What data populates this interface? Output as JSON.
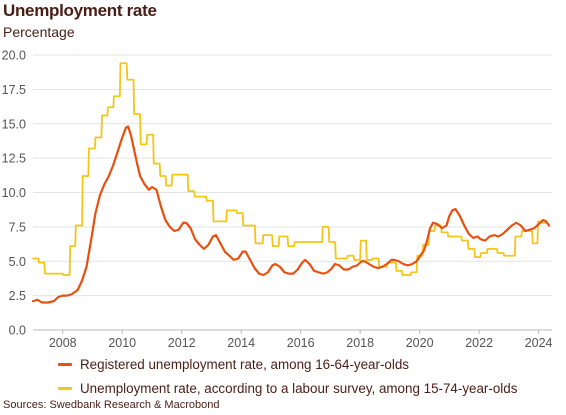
{
  "chart_data": {
    "type": "line",
    "title": "Unemployment rate",
    "subtitle": "Percentage",
    "xlim": [
      2007.0,
      2024.45
    ],
    "ylim": [
      0,
      20
    ],
    "x_ticks": [
      2008,
      2010,
      2012,
      2014,
      2016,
      2018,
      2020,
      2022,
      2024
    ],
    "x_tick_labels": [
      "2008",
      "2010",
      "2012",
      "2014",
      "2016",
      "2018",
      "2020",
      "2022",
      "2024"
    ],
    "y_ticks": [
      0,
      2.5,
      5,
      7.5,
      10,
      12.5,
      15,
      17.5,
      20
    ],
    "y_tick_labels": [
      "0.0",
      "2.5",
      "5.0",
      "7.5",
      "10.0",
      "12.5",
      "15.0",
      "17.5",
      "20.0"
    ],
    "grid": "horizontal",
    "legend_position": "bottom",
    "series": [
      {
        "name": "Registered unemployment rate, among 16-64-year-olds",
        "color": "#e8500e",
        "points": [
          [
            2007.0,
            2.1
          ],
          [
            2007.15,
            2.2
          ],
          [
            2007.3,
            2.0
          ],
          [
            2007.5,
            2.0
          ],
          [
            2007.7,
            2.1
          ],
          [
            2007.85,
            2.4
          ],
          [
            2008.0,
            2.5
          ],
          [
            2008.15,
            2.5
          ],
          [
            2008.3,
            2.6
          ],
          [
            2008.5,
            2.9
          ],
          [
            2008.65,
            3.6
          ],
          [
            2008.8,
            4.6
          ],
          [
            2008.95,
            6.5
          ],
          [
            2009.1,
            8.5
          ],
          [
            2009.25,
            9.8
          ],
          [
            2009.4,
            10.6
          ],
          [
            2009.55,
            11.2
          ],
          [
            2009.7,
            12.0
          ],
          [
            2009.85,
            13.0
          ],
          [
            2010.0,
            14.0
          ],
          [
            2010.12,
            14.7
          ],
          [
            2010.2,
            14.8
          ],
          [
            2010.3,
            14.1
          ],
          [
            2010.4,
            13.1
          ],
          [
            2010.5,
            12.1
          ],
          [
            2010.6,
            11.2
          ],
          [
            2010.75,
            10.6
          ],
          [
            2010.9,
            10.2
          ],
          [
            2011.0,
            10.4
          ],
          [
            2011.15,
            10.2
          ],
          [
            2011.3,
            9.0
          ],
          [
            2011.45,
            8.0
          ],
          [
            2011.6,
            7.5
          ],
          [
            2011.75,
            7.2
          ],
          [
            2011.9,
            7.3
          ],
          [
            2012.05,
            7.8
          ],
          [
            2012.15,
            7.8
          ],
          [
            2012.3,
            7.4
          ],
          [
            2012.45,
            6.6
          ],
          [
            2012.6,
            6.2
          ],
          [
            2012.75,
            5.9
          ],
          [
            2012.9,
            6.2
          ],
          [
            2013.05,
            6.8
          ],
          [
            2013.15,
            6.9
          ],
          [
            2013.3,
            6.3
          ],
          [
            2013.45,
            5.7
          ],
          [
            2013.6,
            5.4
          ],
          [
            2013.75,
            5.1
          ],
          [
            2013.9,
            5.2
          ],
          [
            2014.05,
            5.7
          ],
          [
            2014.15,
            5.7
          ],
          [
            2014.3,
            5.1
          ],
          [
            2014.45,
            4.5
          ],
          [
            2014.6,
            4.1
          ],
          [
            2014.75,
            4.0
          ],
          [
            2014.9,
            4.2
          ],
          [
            2015.05,
            4.7
          ],
          [
            2015.15,
            4.8
          ],
          [
            2015.3,
            4.6
          ],
          [
            2015.45,
            4.2
          ],
          [
            2015.6,
            4.1
          ],
          [
            2015.75,
            4.1
          ],
          [
            2015.9,
            4.4
          ],
          [
            2016.05,
            4.9
          ],
          [
            2016.15,
            5.1
          ],
          [
            2016.3,
            4.8
          ],
          [
            2016.45,
            4.3
          ],
          [
            2016.6,
            4.2
          ],
          [
            2016.75,
            4.1
          ],
          [
            2016.9,
            4.2
          ],
          [
            2017.05,
            4.5
          ],
          [
            2017.15,
            4.8
          ],
          [
            2017.3,
            4.7
          ],
          [
            2017.45,
            4.4
          ],
          [
            2017.6,
            4.4
          ],
          [
            2017.75,
            4.6
          ],
          [
            2017.9,
            4.7
          ],
          [
            2018.05,
            5.0
          ],
          [
            2018.15,
            5.0
          ],
          [
            2018.3,
            4.8
          ],
          [
            2018.45,
            4.6
          ],
          [
            2018.6,
            4.5
          ],
          [
            2018.75,
            4.6
          ],
          [
            2018.9,
            4.8
          ],
          [
            2019.05,
            5.1
          ],
          [
            2019.15,
            5.1
          ],
          [
            2019.3,
            5.0
          ],
          [
            2019.45,
            4.8
          ],
          [
            2019.6,
            4.7
          ],
          [
            2019.75,
            4.8
          ],
          [
            2019.9,
            5.0
          ],
          [
            2020.05,
            5.5
          ],
          [
            2020.15,
            5.8
          ],
          [
            2020.25,
            6.5
          ],
          [
            2020.35,
            7.4
          ],
          [
            2020.45,
            7.8
          ],
          [
            2020.6,
            7.7
          ],
          [
            2020.75,
            7.4
          ],
          [
            2020.9,
            7.6
          ],
          [
            2021.0,
            8.3
          ],
          [
            2021.1,
            8.7
          ],
          [
            2021.2,
            8.8
          ],
          [
            2021.35,
            8.3
          ],
          [
            2021.5,
            7.6
          ],
          [
            2021.65,
            7.0
          ],
          [
            2021.8,
            6.7
          ],
          [
            2021.95,
            6.8
          ],
          [
            2022.05,
            6.6
          ],
          [
            2022.2,
            6.5
          ],
          [
            2022.35,
            6.8
          ],
          [
            2022.5,
            6.9
          ],
          [
            2022.65,
            6.8
          ],
          [
            2022.8,
            7.0
          ],
          [
            2022.95,
            7.3
          ],
          [
            2023.1,
            7.6
          ],
          [
            2023.25,
            7.8
          ],
          [
            2023.4,
            7.6
          ],
          [
            2023.55,
            7.2
          ],
          [
            2023.7,
            7.3
          ],
          [
            2023.85,
            7.4
          ],
          [
            2024.0,
            7.7
          ],
          [
            2024.15,
            8.0
          ],
          [
            2024.25,
            7.9
          ],
          [
            2024.35,
            7.6
          ]
        ]
      },
      {
        "name": "Unemployment rate, according to a labour survey, among 15-74-year-olds",
        "color": "#f5c518",
        "points": [
          [
            2007.0,
            5.2
          ],
          [
            2007.18,
            5.2
          ],
          [
            2007.2,
            4.9
          ],
          [
            2007.38,
            4.9
          ],
          [
            2007.4,
            4.1
          ],
          [
            2008.0,
            4.1
          ],
          [
            2008.02,
            4.0
          ],
          [
            2008.23,
            4.0
          ],
          [
            2008.25,
            6.1
          ],
          [
            2008.42,
            6.1
          ],
          [
            2008.44,
            7.6
          ],
          [
            2008.65,
            7.6
          ],
          [
            2008.67,
            11.2
          ],
          [
            2008.86,
            11.2
          ],
          [
            2008.88,
            13.2
          ],
          [
            2009.08,
            13.2
          ],
          [
            2009.1,
            14.0
          ],
          [
            2009.3,
            14.0
          ],
          [
            2009.32,
            15.6
          ],
          [
            2009.5,
            15.6
          ],
          [
            2009.52,
            16.2
          ],
          [
            2009.7,
            16.2
          ],
          [
            2009.72,
            17.0
          ],
          [
            2009.92,
            17.0
          ],
          [
            2009.94,
            19.4
          ],
          [
            2010.15,
            19.4
          ],
          [
            2010.17,
            18.2
          ],
          [
            2010.38,
            18.2
          ],
          [
            2010.4,
            15.7
          ],
          [
            2010.6,
            15.7
          ],
          [
            2010.62,
            13.5
          ],
          [
            2010.82,
            13.5
          ],
          [
            2010.84,
            14.2
          ],
          [
            2011.04,
            14.2
          ],
          [
            2011.06,
            12.1
          ],
          [
            2011.26,
            12.1
          ],
          [
            2011.28,
            11.2
          ],
          [
            2011.46,
            11.2
          ],
          [
            2011.48,
            10.5
          ],
          [
            2011.66,
            10.5
          ],
          [
            2011.68,
            11.3
          ],
          [
            2012.2,
            11.3
          ],
          [
            2012.22,
            10.1
          ],
          [
            2012.42,
            10.1
          ],
          [
            2012.44,
            9.7
          ],
          [
            2012.82,
            9.7
          ],
          [
            2012.84,
            9.4
          ],
          [
            2013.05,
            9.4
          ],
          [
            2013.07,
            7.9
          ],
          [
            2013.5,
            7.9
          ],
          [
            2013.52,
            8.7
          ],
          [
            2013.84,
            8.7
          ],
          [
            2013.86,
            8.5
          ],
          [
            2014.05,
            8.5
          ],
          [
            2014.07,
            7.6
          ],
          [
            2014.46,
            7.6
          ],
          [
            2014.48,
            6.3
          ],
          [
            2014.72,
            6.3
          ],
          [
            2014.74,
            6.9
          ],
          [
            2015.04,
            6.9
          ],
          [
            2015.06,
            6.1
          ],
          [
            2015.26,
            6.1
          ],
          [
            2015.28,
            6.8
          ],
          [
            2015.56,
            6.8
          ],
          [
            2015.58,
            6.1
          ],
          [
            2015.78,
            6.1
          ],
          [
            2015.8,
            6.4
          ],
          [
            2016.72,
            6.4
          ],
          [
            2016.74,
            7.5
          ],
          [
            2016.94,
            7.5
          ],
          [
            2016.96,
            6.4
          ],
          [
            2017.16,
            6.4
          ],
          [
            2017.18,
            5.2
          ],
          [
            2017.56,
            5.2
          ],
          [
            2017.58,
            5.4
          ],
          [
            2017.78,
            5.4
          ],
          [
            2017.8,
            5.1
          ],
          [
            2018.0,
            5.1
          ],
          [
            2018.02,
            6.5
          ],
          [
            2018.2,
            6.5
          ],
          [
            2018.22,
            5.1
          ],
          [
            2018.4,
            5.1
          ],
          [
            2018.42,
            5.2
          ],
          [
            2018.62,
            5.2
          ],
          [
            2018.64,
            4.6
          ],
          [
            2018.9,
            4.6
          ],
          [
            2018.92,
            4.9
          ],
          [
            2019.2,
            4.9
          ],
          [
            2019.22,
            4.3
          ],
          [
            2019.4,
            4.3
          ],
          [
            2019.42,
            4.0
          ],
          [
            2019.7,
            4.0
          ],
          [
            2019.72,
            4.2
          ],
          [
            2019.9,
            4.2
          ],
          [
            2019.92,
            5.4
          ],
          [
            2020.1,
            5.4
          ],
          [
            2020.12,
            6.2
          ],
          [
            2020.3,
            6.2
          ],
          [
            2020.32,
            7.2
          ],
          [
            2020.5,
            7.2
          ],
          [
            2020.52,
            7.6
          ],
          [
            2020.72,
            7.6
          ],
          [
            2020.74,
            7.1
          ],
          [
            2020.94,
            7.1
          ],
          [
            2020.96,
            6.8
          ],
          [
            2021.4,
            6.8
          ],
          [
            2021.42,
            6.5
          ],
          [
            2021.62,
            6.5
          ],
          [
            2021.64,
            5.9
          ],
          [
            2021.84,
            5.9
          ],
          [
            2021.86,
            5.3
          ],
          [
            2022.04,
            5.3
          ],
          [
            2022.06,
            5.6
          ],
          [
            2022.26,
            5.6
          ],
          [
            2022.28,
            5.9
          ],
          [
            2022.6,
            5.9
          ],
          [
            2022.62,
            5.6
          ],
          [
            2022.82,
            5.6
          ],
          [
            2022.84,
            5.4
          ],
          [
            2023.2,
            5.4
          ],
          [
            2023.22,
            6.8
          ],
          [
            2023.42,
            6.8
          ],
          [
            2023.44,
            7.2
          ],
          [
            2023.78,
            7.2
          ],
          [
            2023.8,
            6.3
          ],
          [
            2023.96,
            6.3
          ],
          [
            2023.98,
            7.9
          ],
          [
            2024.1,
            7.9
          ],
          [
            2024.12,
            7.8
          ],
          [
            2024.3,
            7.8
          ]
        ]
      }
    ]
  },
  "source": "Sources: Swedbank Research & Macrobond"
}
